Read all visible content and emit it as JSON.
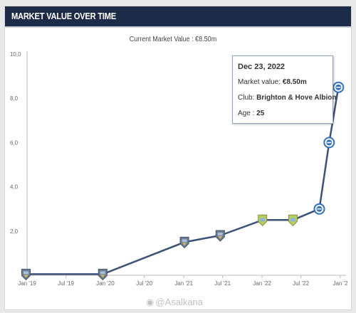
{
  "header": {
    "title": "MARKET VALUE OVER TIME"
  },
  "current_value_text": "Current Market Value : €8.50m",
  "tooltip": {
    "date": "Dec 23, 2022",
    "market_value_label": "Market value: ",
    "market_value": "€8.50m",
    "club_label": "Club: ",
    "club": "Brighton & Hove Albion",
    "age_label": "Age : ",
    "age": "25"
  },
  "watermark": "@Asalkana",
  "colors": {
    "header_bg": "#1c2b48",
    "line": "#3d5277",
    "brighton_marker": "#2f6fc4",
    "other_marker": "#6b7d95",
    "loan_marker": "#b8cf5a"
  },
  "chart_data": {
    "type": "line",
    "title": "",
    "xlabel": "",
    "ylabel": "",
    "ylim": [
      0,
      10
    ],
    "y_ticks": [
      "10,0",
      "8,0",
      "6,0",
      "4,0",
      "2,0"
    ],
    "x_ticks": [
      "Jan '19",
      "Jul '19",
      "Jan '20",
      "Jul '20",
      "Jan '21",
      "Jul '21",
      "Jan '22",
      "Jul '22",
      "Jan '2"
    ],
    "x_tick_dates": [
      "2019-01-01",
      "2019-07-01",
      "2020-01-01",
      "2020-07-01",
      "2021-01-01",
      "2021-07-01",
      "2022-01-01",
      "2022-07-01",
      "2023-01-01"
    ],
    "grid": false,
    "series": [
      {
        "points": [
          {
            "date": "2018-12-27",
            "value": 0.05,
            "club": "other"
          },
          {
            "date": "2019-12-20",
            "value": 0.05,
            "club": "other"
          },
          {
            "date": "2021-01-04",
            "value": 1.5,
            "club": "other"
          },
          {
            "date": "2021-06-20",
            "value": 1.8,
            "club": "other"
          },
          {
            "date": "2022-01-03",
            "value": 2.5,
            "club": "loan"
          },
          {
            "date": "2022-05-25",
            "value": 2.5,
            "club": "loan"
          },
          {
            "date": "2022-09-25",
            "value": 3.0,
            "club": "brighton"
          },
          {
            "date": "2022-11-10",
            "value": 6.0,
            "club": "brighton"
          },
          {
            "date": "2022-12-23",
            "value": 8.5,
            "club": "brighton"
          }
        ]
      }
    ]
  }
}
